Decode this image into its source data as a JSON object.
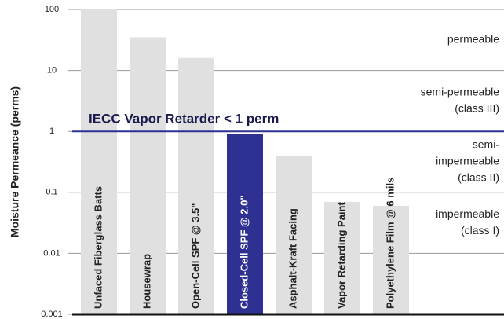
{
  "chart_data": {
    "type": "bar",
    "y_axis_label": "Moisture Permeance (perms)",
    "categories": [
      "Unfaced Fiberglass Batts",
      "Housewrap",
      "Open-Cell SPF @ 3.5\"",
      "Closed-Cell SPF @ 2.0\"",
      "Asphalt-Kraft Facing",
      "Vapor Retarding Paint",
      "Polyethylene Film @ 6 mils"
    ],
    "values": [
      100,
      35,
      16,
      0.9,
      0.4,
      0.07,
      0.06
    ],
    "colors": [
      "#e0e0e0",
      "#e0e0e0",
      "#e0e0e0",
      "#2e3192",
      "#e0e0e0",
      "#e0e0e0",
      "#e0e0e0"
    ],
    "log_scale": true,
    "ylim": [
      0.001,
      100
    ],
    "yticks": [
      0.001,
      0.01,
      0.1,
      1,
      10,
      100
    ],
    "grid": true,
    "reference_line": {
      "value": 1,
      "label": "IECC Vapor Retarder  < 1 perm",
      "color": "#2e3192"
    },
    "annotations": [
      {
        "lines": [
          "permeable"
        ],
        "from": 10,
        "to": 100
      },
      {
        "lines": [
          "semi-permeable",
          "(class III)"
        ],
        "from": 1,
        "to": 10
      },
      {
        "lines": [
          "semi-",
          "impermeable",
          "(class II)"
        ],
        "from": 0.1,
        "to": 1
      },
      {
        "lines": [
          "impermeable",
          "(class I)"
        ],
        "from": 0.01,
        "to": 0.1
      }
    ]
  }
}
